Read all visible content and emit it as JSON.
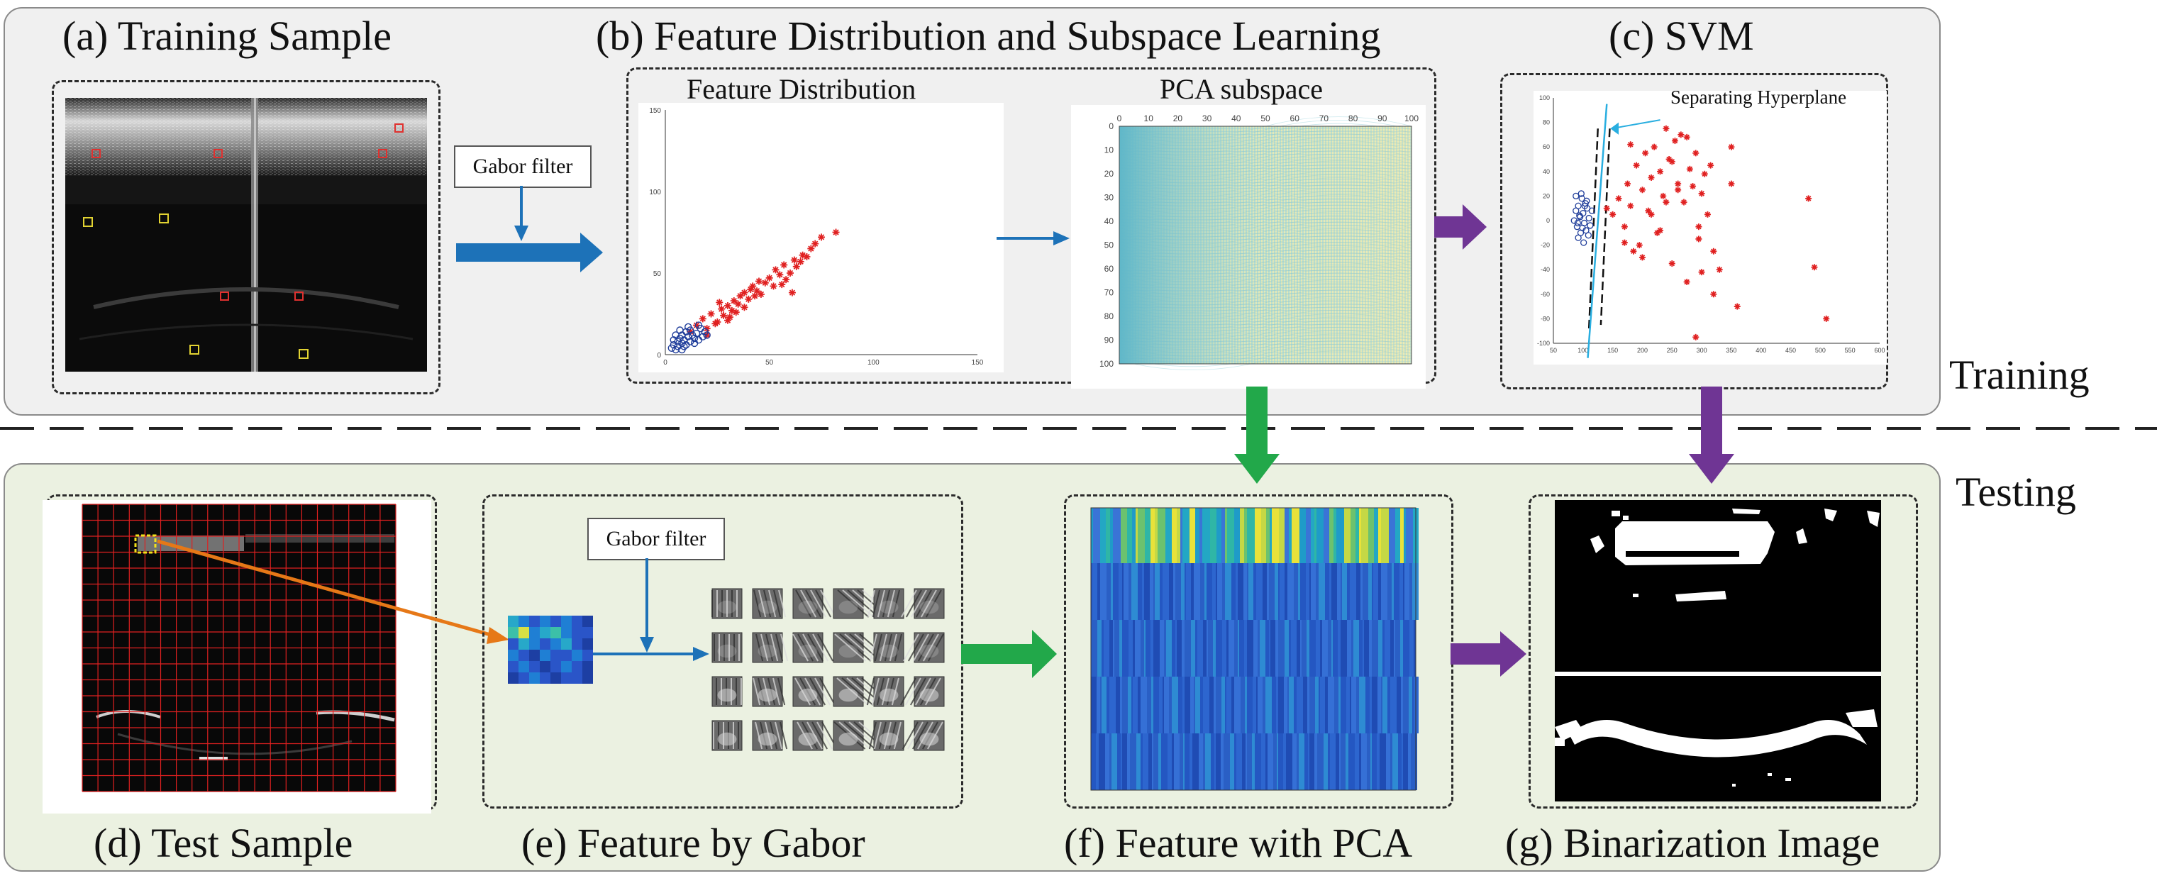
{
  "titles": {
    "a": "(a) Training Sample",
    "b": "(b) Feature Distribution and Subspace Learning",
    "c": "(c) SVM",
    "d": "(d) Test Sample",
    "e": "(e) Feature by Gabor",
    "f": "(f) Feature with PCA",
    "g": "(g) Binarization Image"
  },
  "stage_labels": {
    "training": "Training",
    "testing": "Testing"
  },
  "gabor_label": "Gabor filter",
  "feature_dist": {
    "title": "Feature Distribution",
    "y_ticks": [
      "150",
      "100",
      "50",
      "0"
    ],
    "x_ticks": [
      "0",
      "50",
      "100",
      "150"
    ]
  },
  "pca": {
    "title": "PCA subspace",
    "x_ticks": [
      "0",
      "10",
      "20",
      "30",
      "40",
      "50",
      "60",
      "70",
      "80",
      "90",
      "100"
    ],
    "y_ticks": [
      "0",
      "10",
      "20",
      "30",
      "40",
      "50",
      "60",
      "70",
      "80",
      "90",
      "100"
    ]
  },
  "svm": {
    "hyperplane_label": "Separating Hyperplane",
    "y_ticks": [
      "100",
      "80",
      "60",
      "40",
      "20",
      "0",
      "-20",
      "-40",
      "-60",
      "-80",
      "-100"
    ],
    "x_ticks": [
      "50",
      "100",
      "150",
      "200",
      "250",
      "300",
      "350",
      "400",
      "450",
      "500",
      "550",
      "600"
    ]
  },
  "colors": {
    "training_bg": "#f0f0f0",
    "testing_bg": "#ebf1e1",
    "blue_arrow": "#1d72b8",
    "green_arrow": "#22a84a",
    "purple_arrow": "#6f3594",
    "orange_arrow": "#e67817",
    "red_marker": "#e02020",
    "blue_marker": "#1f3d9a",
    "cyan_line": "#29aee0"
  },
  "chart_data": [
    {
      "type": "scatter",
      "title": "Feature Distribution",
      "xlim": [
        0,
        150
      ],
      "ylim": [
        0,
        150
      ],
      "series": [
        {
          "marker": "*",
          "color": "#e02020",
          "x": [
            12,
            15,
            18,
            20,
            22,
            25,
            27,
            28,
            30,
            32,
            33,
            35,
            36,
            38,
            40,
            41,
            42,
            44,
            45,
            46,
            48,
            50,
            52,
            53,
            55,
            57,
            58,
            60,
            62,
            63,
            65,
            68,
            70,
            72,
            75,
            20,
            24,
            30,
            34,
            38,
            26,
            31,
            43,
            56,
            61,
            66,
            82
          ],
          "y": [
            14,
            18,
            22,
            16,
            25,
            20,
            28,
            24,
            30,
            27,
            33,
            31,
            36,
            38,
            34,
            40,
            42,
            39,
            45,
            37,
            44,
            47,
            42,
            52,
            49,
            55,
            46,
            50,
            58,
            54,
            57,
            60,
            65,
            68,
            72,
            12,
            19,
            21,
            26,
            29,
            32,
            23,
            36,
            43,
            38,
            61,
            75
          ]
        },
        {
          "marker": "o",
          "color": "#1f3d9a",
          "x": [
            3,
            4,
            5,
            6,
            6,
            7,
            8,
            8,
            9,
            10,
            10,
            11,
            12,
            12,
            13,
            14,
            15,
            16,
            17,
            18,
            19,
            20,
            5,
            7,
            9,
            11,
            14,
            16,
            4,
            8
          ],
          "y": [
            4,
            6,
            3,
            8,
            5,
            10,
            7,
            12,
            9,
            6,
            14,
            11,
            8,
            15,
            12,
            10,
            13,
            9,
            16,
            11,
            14,
            12,
            12,
            15,
            5,
            17,
            7,
            18,
            9,
            3
          ]
        }
      ]
    },
    {
      "type": "scatter",
      "title": "",
      "xlim": [
        50,
        600
      ],
      "ylim": [
        -100,
        100
      ],
      "series": [
        {
          "marker": "o",
          "color": "#1f3d9a",
          "x": [
            85,
            88,
            90,
            92,
            95,
            96,
            98,
            100,
            102,
            104,
            105,
            107,
            110,
            112,
            115,
            88,
            92,
            97,
            101,
            106,
            94,
            99,
            103,
            91,
            109
          ],
          "y": [
            0,
            8,
            -5,
            12,
            3,
            -10,
            18,
            6,
            -2,
            14,
            -8,
            10,
            2,
            -4,
            8,
            20,
            -14,
            22,
            -18,
            16,
            4,
            -6,
            12,
            -2,
            -12
          ]
        },
        {
          "marker": "*",
          "color": "#e02020",
          "x": [
            140,
            150,
            160,
            170,
            175,
            180,
            190,
            195,
            200,
            205,
            210,
            215,
            220,
            225,
            230,
            235,
            240,
            245,
            250,
            255,
            260,
            265,
            270,
            275,
            280,
            285,
            290,
            295,
            300,
            305,
            310,
            315,
            320,
            330,
            350,
            360,
            480,
            490,
            510,
            170,
            200,
            230,
            260,
            290,
            320,
            180,
            215,
            250,
            275,
            300,
            350,
            185,
            240,
            295
          ],
          "y": [
            10,
            5,
            18,
            -5,
            30,
            12,
            45,
            -20,
            25,
            55,
            8,
            35,
            60,
            -10,
            40,
            20,
            75,
            50,
            -35,
            65,
            30,
            70,
            15,
            -50,
            42,
            28,
            55,
            -15,
            22,
            38,
            5,
            45,
            -25,
            -40,
            60,
            -70,
            18,
            -38,
            -80,
            -18,
            -30,
            -8,
            25,
            -95,
            -60,
            62,
            5,
            48,
            68,
            -42,
            30,
            -25,
            15,
            -5
          ]
        }
      ]
    }
  ]
}
